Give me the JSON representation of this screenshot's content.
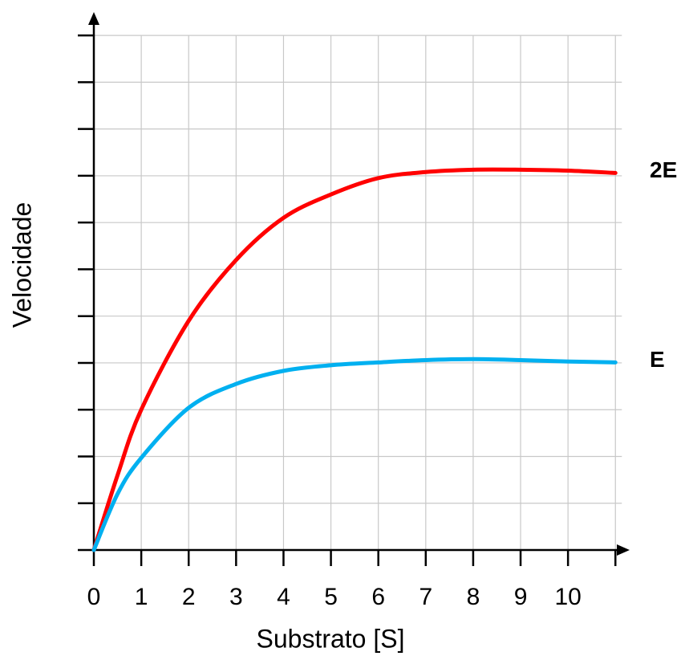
{
  "chart_data": {
    "type": "line",
    "xlabel": "Substrato [S]",
    "ylabel": "Velocidade",
    "x": [
      0,
      0.5,
      1,
      2,
      3,
      4,
      5,
      6,
      7,
      8,
      9,
      10,
      11
    ],
    "series": [
      {
        "name": "2E",
        "color": "#ff0000",
        "values": [
          0,
          1.6,
          3.0,
          4.9,
          6.2,
          7.1,
          7.6,
          7.95,
          8.08,
          8.13,
          8.13,
          8.11,
          8.06
        ]
      },
      {
        "name": "E",
        "color": "#00b0f0",
        "values": [
          0,
          1.2,
          1.97,
          3.04,
          3.55,
          3.83,
          3.95,
          4.01,
          4.06,
          4.08,
          4.06,
          4.03,
          4.01
        ]
      }
    ],
    "xlim": [
      0,
      11.3
    ],
    "ylim": [
      0,
      11.5
    ],
    "xticks": [
      0,
      1,
      2,
      3,
      4,
      5,
      6,
      7,
      8,
      9,
      10
    ],
    "yticks": [
      0,
      1,
      2,
      3,
      4,
      5,
      6,
      7,
      8,
      9,
      10,
      11
    ],
    "grid": true
  }
}
